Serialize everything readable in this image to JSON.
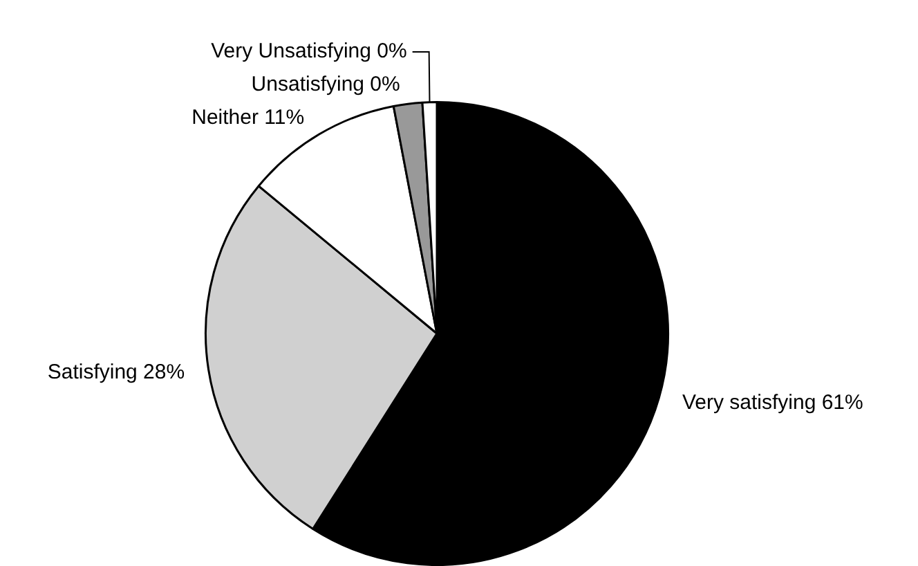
{
  "chart_data": {
    "type": "pie",
    "categories": [
      "Very satisfying 61%",
      "Satisfying 28%",
      "Neither 11%",
      "Unsatisfying 0%",
      "Very Unsatisfying 0%"
    ],
    "values": [
      59,
      27,
      11,
      2,
      1
    ],
    "colors": [
      "#000000",
      "#d0d0d0",
      "#ffffff",
      "#999999",
      "#ffffff"
    ],
    "legend": false
  }
}
